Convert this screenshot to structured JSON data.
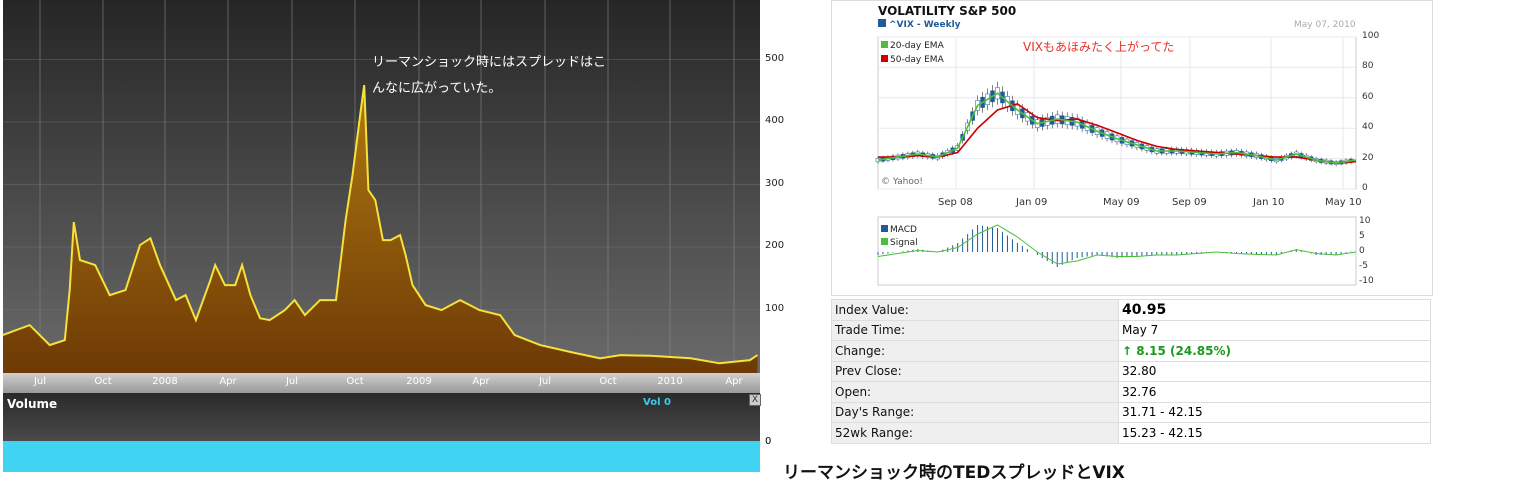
{
  "chart_data": [
    {
      "type": "area",
      "title": "",
      "annotation": "リーマンショック時にはスプレッドはこんなに広がっていた。",
      "y_ticks": [
        100,
        200,
        300,
        400,
        500
      ],
      "ylim": [
        0,
        550
      ],
      "x_ticks": [
        "Jul",
        "Oct",
        "2008",
        "Apr",
        "Jul",
        "Oct",
        "2009",
        "Apr",
        "Jul",
        "Oct",
        "2010",
        "Apr"
      ],
      "colors": {
        "line": "#f5e23a",
        "fill_top": "#b07a10",
        "fill_bottom": "#6e3a05"
      },
      "grid": true,
      "points": [
        [
          "2007-05-08",
          59
        ],
        [
          "2007-06-16",
          75
        ],
        [
          "2007-07-15",
          43
        ],
        [
          "2007-08-06",
          51
        ],
        [
          "2007-08-13",
          131
        ],
        [
          "2007-08-19",
          240
        ],
        [
          "2007-08-28",
          179
        ],
        [
          "2007-09-19",
          171
        ],
        [
          "2007-10-10",
          123
        ],
        [
          "2007-11-02",
          131
        ],
        [
          "2007-11-23",
          203
        ],
        [
          "2007-12-08",
          214
        ],
        [
          "2007-12-22",
          171
        ],
        [
          "2008-01-14",
          115
        ],
        [
          "2008-01-28",
          123
        ],
        [
          "2008-02-12",
          83
        ],
        [
          "2008-03-04",
          147
        ],
        [
          "2008-03-11",
          171
        ],
        [
          "2008-03-25",
          139
        ],
        [
          "2008-04-09",
          139
        ],
        [
          "2008-04-19",
          171
        ],
        [
          "2008-05-01",
          123
        ],
        [
          "2008-05-15",
          86
        ],
        [
          "2008-05-29",
          83
        ],
        [
          "2008-06-20",
          99
        ],
        [
          "2008-07-04",
          115
        ],
        [
          "2008-07-19",
          91
        ],
        [
          "2008-08-10",
          115
        ],
        [
          "2008-09-02",
          115
        ],
        [
          "2008-09-16",
          243
        ],
        [
          "2008-09-26",
          315
        ],
        [
          "2008-10-08",
          419
        ],
        [
          "2008-10-13",
          459
        ],
        [
          "2008-10-19",
          291
        ],
        [
          "2008-10-29",
          275
        ],
        [
          "2008-11-09",
          211
        ],
        [
          "2008-11-20",
          211
        ],
        [
          "2008-12-04",
          219
        ],
        [
          "2008-12-12",
          187
        ],
        [
          "2008-12-22",
          139
        ],
        [
          "2009-01-10",
          107
        ],
        [
          "2009-02-02",
          99
        ],
        [
          "2009-03-01",
          115
        ],
        [
          "2009-03-29",
          99
        ],
        [
          "2009-04-28",
          91
        ],
        [
          "2009-05-19",
          59
        ],
        [
          "2009-06-25",
          43
        ],
        [
          "2009-08-08",
          32
        ],
        [
          "2009-09-20",
          22
        ],
        [
          "2009-10-19",
          27
        ],
        [
          "2009-12-02",
          26
        ],
        [
          "2010-01-29",
          22
        ],
        [
          "2010-03-12",
          14
        ],
        [
          "2010-04-25",
          19
        ],
        [
          "2010-05-06",
          27
        ]
      ],
      "volume": {
        "title": "Volume",
        "value_label": "Vol 0",
        "y_tick": "0",
        "close": "X"
      }
    },
    {
      "type": "line",
      "title": "VOLATILITY S&P 500",
      "subtitle": "^VIX - Weekly",
      "date": "May 07, 2010",
      "annotation": "VIXもあほみたく上がってた",
      "credit": "© Yahoo!",
      "ylim": [
        0,
        100
      ],
      "y_ticks": [
        0,
        20,
        40,
        60,
        80,
        100
      ],
      "x_ticks": [
        "Sep 08",
        "Jan 09",
        "May 09",
        "Sep 09",
        "Jan 10",
        "May 10"
      ],
      "months": [
        "2008-05",
        "2008-06",
        "2008-07",
        "2008-08",
        "2008-09",
        "2008-10",
        "2008-11",
        "2008-12",
        "2009-01",
        "2009-02",
        "2009-03",
        "2009-04",
        "2009-05",
        "2009-06",
        "2009-07",
        "2009-08",
        "2009-09",
        "2009-10",
        "2009-11",
        "2009-12",
        "2010-01",
        "2010-02",
        "2010-03",
        "2010-04",
        "2010-05"
      ],
      "series": [
        {
          "name": "20-day EMA",
          "color": "#4bbf3a",
          "values": [
            19,
            21,
            23,
            21,
            27,
            55,
            63,
            52,
            43,
            46,
            44,
            38,
            33,
            29,
            25,
            25,
            24,
            23,
            24,
            22,
            19,
            23,
            19,
            17,
            19
          ]
        },
        {
          "name": "50-day EMA",
          "color": "#cc0000",
          "values": [
            21,
            21,
            22,
            21,
            24,
            40,
            52,
            56,
            47,
            45,
            46,
            42,
            37,
            32,
            28,
            26,
            25,
            24,
            23,
            22,
            21,
            21,
            19,
            17,
            18
          ]
        }
      ],
      "macd": {
        "ylim": [
          -10,
          10
        ],
        "y_ticks": [
          10,
          5,
          0,
          -5,
          -10
        ],
        "series": [
          {
            "name": "MACD",
            "color": "#1f5b99",
            "values": [
              -1,
              0,
              1,
              0,
              3,
              9,
              8,
              3,
              -1,
              -5,
              -2,
              -1,
              -2,
              -1.5,
              -1,
              -1,
              -0.5,
              0,
              -0.5,
              -1,
              -1,
              1,
              -1,
              -1,
              0.5
            ]
          },
          {
            "name": "Signal",
            "color": "#4bbf3a",
            "values": [
              -1.5,
              -0.5,
              0.5,
              0,
              1.5,
              6,
              9,
              5,
              0,
              -4,
              -3,
              -1,
              -1.5,
              -1.5,
              -1,
              -1,
              -0.5,
              0,
              -0.5,
              -0.8,
              -1,
              0.8,
              -0.5,
              -1,
              0
            ]
          }
        ]
      }
    }
  ],
  "quote_table": [
    {
      "label": "Index Value:",
      "value": "40.95"
    },
    {
      "label": "Trade Time:",
      "value": "May 7"
    },
    {
      "label": "Change:",
      "value": "8.15 (24.85%)",
      "direction": "up"
    },
    {
      "label": "Prev Close:",
      "value": "32.80"
    },
    {
      "label": "Open:",
      "value": "32.76"
    },
    {
      "label": "Day's Range:",
      "value": "31.71 - 42.15"
    },
    {
      "label": "52wk Range:",
      "value": "15.23 - 42.15"
    }
  ],
  "caption": "リーマンショック時のTEDスプレッドとVIX"
}
